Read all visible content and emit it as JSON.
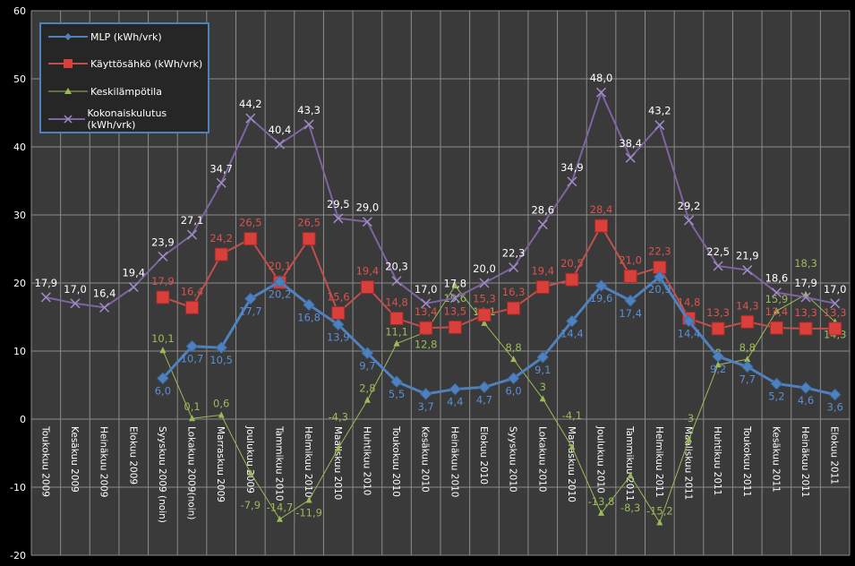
{
  "chart_data": {
    "type": "line",
    "ylim": [
      -20,
      60
    ],
    "yticks": [
      -20,
      -10,
      0,
      10,
      20,
      30,
      40,
      50,
      60
    ],
    "grid": true,
    "legend_position": "top-left",
    "categories": [
      "Toukokuu 2009",
      "Kesäkuu 2009",
      "Heinäkuu 2009",
      "Elokuu 2009",
      "Syyskuu 2009 (noin)",
      "Lokakuu 2009(noin)",
      "Marraskuu 2009",
      "Joulukuu 2009",
      "Tammikuu 2010",
      "Helmikuu 2010",
      "Maaliskuu 2010",
      "Huhtikuu 2010",
      "Toukokuu 2010",
      "Kesäkuu 2010",
      "Heinäkuu 2010",
      "Elokuu 2010",
      "Syyskuu 2010",
      "Lokakuu 2010",
      "Marraskuu 2010",
      "Joulukuu 2010",
      "Tammikuu 2011",
      "Helmikuu 2011",
      "Maaliskuu 2011",
      "Huhtikuu 2011",
      "Toukokuu 2011",
      "Kesäkuu 2011",
      "Heinäkuu 2011",
      "Elokuu 2011"
    ],
    "series": [
      {
        "name": "MLP (kWh/vrk)",
        "color": "#4f81bd",
        "marker": "diamond",
        "values": [
          null,
          null,
          null,
          null,
          6.0,
          10.7,
          10.5,
          17.7,
          20.2,
          16.8,
          13.9,
          9.7,
          5.5,
          3.7,
          4.4,
          4.7,
          6.0,
          9.1,
          14.4,
          19.6,
          17.4,
          20.9,
          14.4,
          9.2,
          7.7,
          5.2,
          4.6,
          3.6
        ]
      },
      {
        "name": "Käyttösähkö (kWh/vrk)",
        "color": "#c0504d",
        "marker": "square",
        "values": [
          null,
          null,
          null,
          null,
          17.9,
          16.4,
          24.2,
          26.5,
          20.1,
          26.5,
          15.6,
          19.4,
          14.8,
          13.4,
          13.5,
          15.3,
          16.3,
          19.4,
          20.5,
          28.4,
          21.0,
          22.3,
          14.8,
          13.3,
          14.3,
          13.4,
          13.3,
          13.3
        ]
      },
      {
        "name": "Keskilämpötila",
        "color": "#9bbb59",
        "marker": "triangle",
        "values": [
          null,
          null,
          null,
          null,
          10.1,
          0.1,
          0.6,
          -7.9,
          -14.7,
          -11.9,
          -4.3,
          2.8,
          11.1,
          12.8,
          19.6,
          14.1,
          8.8,
          3,
          -4.1,
          -13.8,
          -8.3,
          -15.2,
          -3,
          8,
          8.8,
          15.9,
          18.3,
          14.3
        ]
      },
      {
        "name": "Kokonaiskulutus (kWh/vrk)",
        "color": "#8064a2",
        "marker": "x",
        "values": [
          17.9,
          17.0,
          16.4,
          19.4,
          23.9,
          27.1,
          34.7,
          44.2,
          40.4,
          43.3,
          29.5,
          29.0,
          20.3,
          17.0,
          17.8,
          20.0,
          22.3,
          28.6,
          34.9,
          48.0,
          38.4,
          43.2,
          29.2,
          22.5,
          21.9,
          18.6,
          17.9,
          17.0
        ]
      }
    ]
  }
}
